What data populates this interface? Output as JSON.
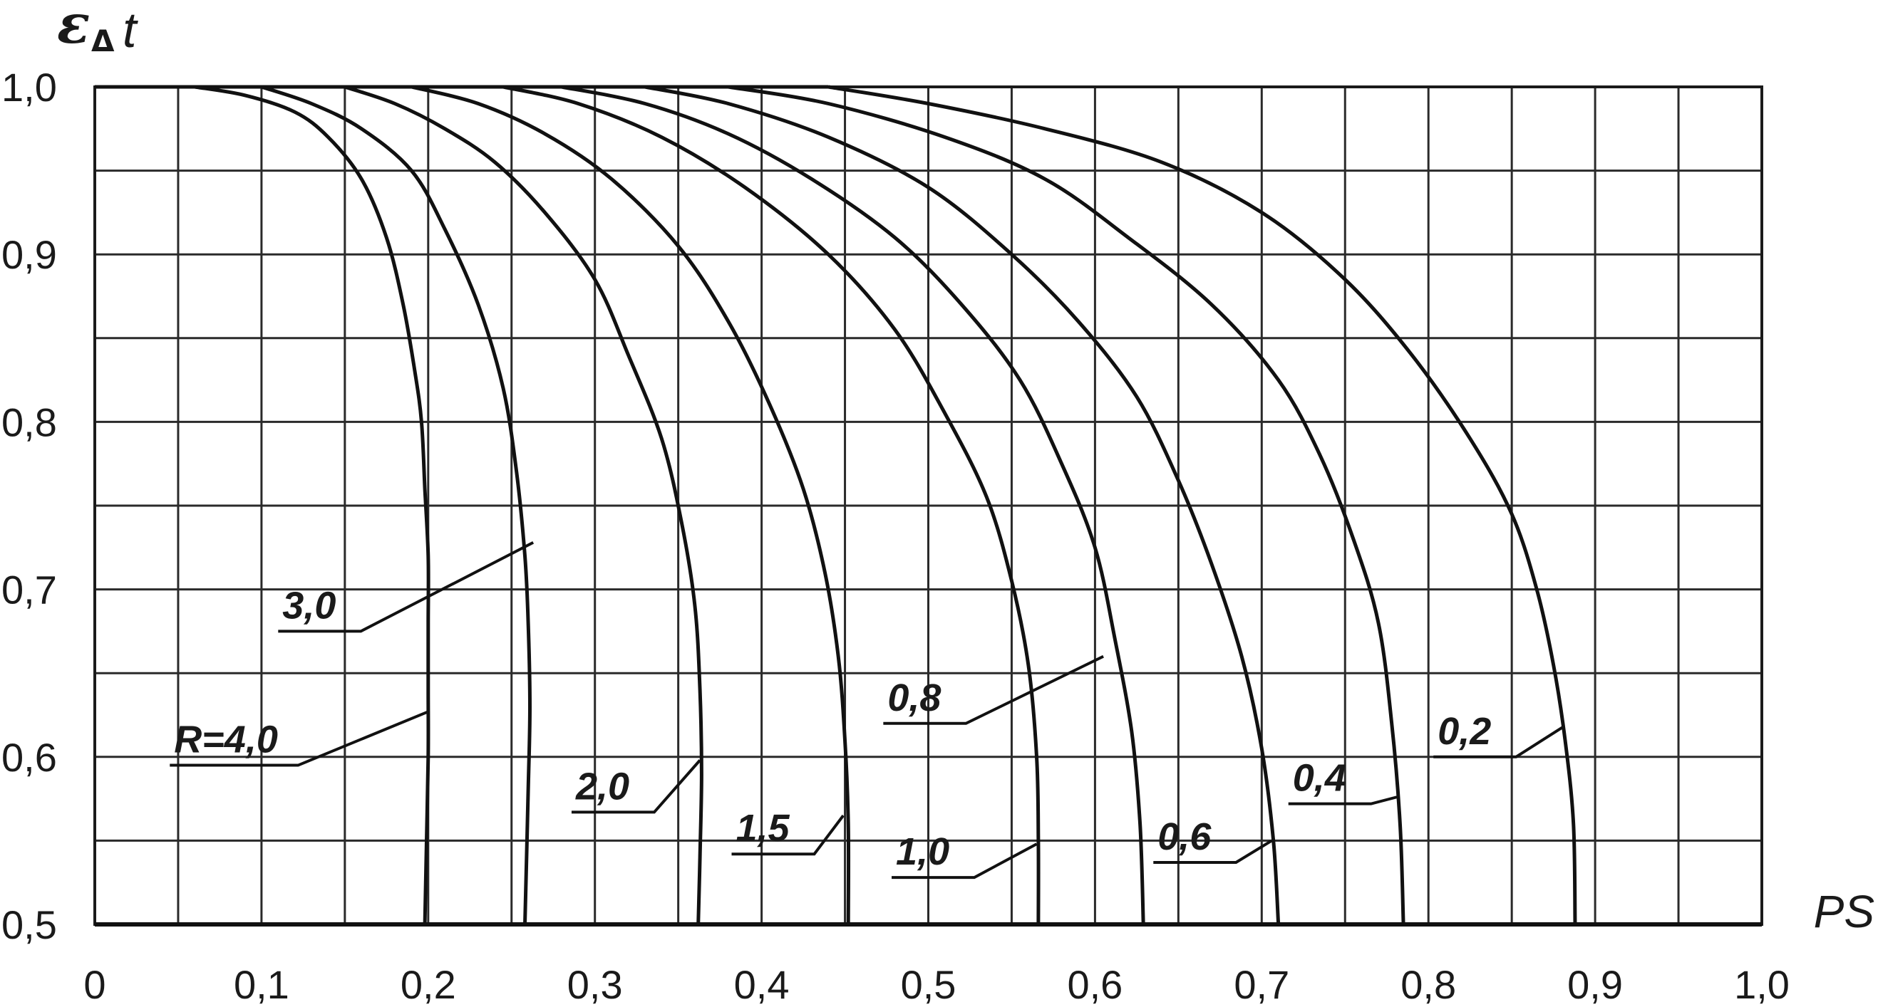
{
  "chart_data": {
    "type": "line",
    "ylabel": {
      "main": "ε",
      "sub": "Δ",
      "suffix": "t"
    },
    "xlabel": "PS",
    "xlim": [
      0,
      1.0
    ],
    "ylim": [
      0.5,
      1.0
    ],
    "grid": true,
    "x_tick_labels": [
      "0",
      "0,1",
      "0,2",
      "0,3",
      "0,4",
      "0,5",
      "0,6",
      "0,7",
      "0,8",
      "0,9",
      "1,0"
    ],
    "y_tick_labels": [
      "0,5",
      "0,6",
      "0,7",
      "0,8",
      "0,9",
      "1,0"
    ],
    "series": [
      {
        "name": "R=4,0",
        "label_text": "R=4,0",
        "points": [
          [
            0.06,
            1.0
          ],
          [
            0.09,
            0.995
          ],
          [
            0.12,
            0.985
          ],
          [
            0.14,
            0.97
          ],
          [
            0.16,
            0.945
          ],
          [
            0.175,
            0.91
          ],
          [
            0.185,
            0.87
          ],
          [
            0.192,
            0.83
          ],
          [
            0.196,
            0.8
          ],
          [
            0.198,
            0.76
          ],
          [
            0.2,
            0.72
          ],
          [
            0.2,
            0.68
          ],
          [
            0.2,
            0.64
          ],
          [
            0.2,
            0.6
          ],
          [
            0.199,
            0.55
          ],
          [
            0.198,
            0.5
          ]
        ],
        "label_anchor": [
          0.045,
          0.595
        ],
        "leader_end": [
          0.2,
          0.627
        ]
      },
      {
        "name": "3,0",
        "label_text": "3,0",
        "points": [
          [
            0.1,
            1.0
          ],
          [
            0.13,
            0.99
          ],
          [
            0.16,
            0.975
          ],
          [
            0.19,
            0.95
          ],
          [
            0.21,
            0.915
          ],
          [
            0.23,
            0.87
          ],
          [
            0.245,
            0.82
          ],
          [
            0.253,
            0.77
          ],
          [
            0.258,
            0.72
          ],
          [
            0.26,
            0.68
          ],
          [
            0.261,
            0.63
          ],
          [
            0.26,
            0.58
          ],
          [
            0.258,
            0.5
          ]
        ],
        "label_anchor": [
          0.11,
          0.675
        ],
        "leader_end": [
          0.263,
          0.728
        ]
      },
      {
        "name": "2,0",
        "label_text": "2,0",
        "points": [
          [
            0.15,
            1.0
          ],
          [
            0.18,
            0.99
          ],
          [
            0.21,
            0.975
          ],
          [
            0.24,
            0.955
          ],
          [
            0.27,
            0.925
          ],
          [
            0.3,
            0.885
          ],
          [
            0.32,
            0.84
          ],
          [
            0.34,
            0.79
          ],
          [
            0.352,
            0.74
          ],
          [
            0.36,
            0.69
          ],
          [
            0.363,
            0.64
          ],
          [
            0.364,
            0.59
          ],
          [
            0.363,
            0.54
          ],
          [
            0.362,
            0.5
          ]
        ],
        "label_anchor": [
          0.286,
          0.567
        ],
        "leader_end": [
          0.363,
          0.598
        ]
      },
      {
        "name": "1,5",
        "label_text": "1,5",
        "points": [
          [
            0.19,
            1.0
          ],
          [
            0.23,
            0.99
          ],
          [
            0.27,
            0.972
          ],
          [
            0.31,
            0.945
          ],
          [
            0.35,
            0.905
          ],
          [
            0.38,
            0.86
          ],
          [
            0.405,
            0.81
          ],
          [
            0.425,
            0.76
          ],
          [
            0.438,
            0.71
          ],
          [
            0.446,
            0.66
          ],
          [
            0.45,
            0.61
          ],
          [
            0.452,
            0.56
          ],
          [
            0.452,
            0.5
          ]
        ],
        "label_anchor": [
          0.382,
          0.542
        ],
        "leader_end": [
          0.449,
          0.565
        ]
      },
      {
        "name": "1,0",
        "label_text": "1,0",
        "points": [
          [
            0.245,
            1.0
          ],
          [
            0.29,
            0.99
          ],
          [
            0.34,
            0.97
          ],
          [
            0.39,
            0.94
          ],
          [
            0.44,
            0.9
          ],
          [
            0.48,
            0.855
          ],
          [
            0.51,
            0.805
          ],
          [
            0.535,
            0.755
          ],
          [
            0.55,
            0.705
          ],
          [
            0.56,
            0.655
          ],
          [
            0.565,
            0.6
          ],
          [
            0.566,
            0.55
          ],
          [
            0.566,
            0.5
          ]
        ],
        "label_anchor": [
          0.478,
          0.528
        ],
        "leader_end": [
          0.565,
          0.548
        ]
      },
      {
        "name": "0,8",
        "label_text": "0,8",
        "points": [
          [
            0.28,
            1.0
          ],
          [
            0.33,
            0.99
          ],
          [
            0.38,
            0.972
          ],
          [
            0.43,
            0.945
          ],
          [
            0.48,
            0.91
          ],
          [
            0.52,
            0.87
          ],
          [
            0.555,
            0.825
          ],
          [
            0.58,
            0.775
          ],
          [
            0.6,
            0.725
          ],
          [
            0.612,
            0.67
          ],
          [
            0.622,
            0.615
          ],
          [
            0.627,
            0.56
          ],
          [
            0.629,
            0.5
          ]
        ],
        "label_anchor": [
          0.473,
          0.62
        ],
        "leader_end": [
          0.605,
          0.66
        ]
      },
      {
        "name": "0,6",
        "label_text": "0,6",
        "points": [
          [
            0.33,
            1.0
          ],
          [
            0.38,
            0.99
          ],
          [
            0.44,
            0.97
          ],
          [
            0.5,
            0.94
          ],
          [
            0.55,
            0.9
          ],
          [
            0.59,
            0.86
          ],
          [
            0.625,
            0.815
          ],
          [
            0.65,
            0.765
          ],
          [
            0.67,
            0.715
          ],
          [
            0.688,
            0.66
          ],
          [
            0.7,
            0.605
          ],
          [
            0.707,
            0.55
          ],
          [
            0.71,
            0.5
          ]
        ],
        "label_anchor": [
          0.635,
          0.537
        ],
        "leader_end": [
          0.706,
          0.55
        ]
      },
      {
        "name": "0,4",
        "label_text": "0,4",
        "points": [
          [
            0.38,
            1.0
          ],
          [
            0.44,
            0.99
          ],
          [
            0.51,
            0.97
          ],
          [
            0.57,
            0.945
          ],
          [
            0.62,
            0.91
          ],
          [
            0.67,
            0.87
          ],
          [
            0.71,
            0.825
          ],
          [
            0.735,
            0.78
          ],
          [
            0.755,
            0.73
          ],
          [
            0.77,
            0.68
          ],
          [
            0.778,
            0.62
          ],
          [
            0.783,
            0.56
          ],
          [
            0.785,
            0.5
          ]
        ],
        "label_anchor": [
          0.716,
          0.572
        ],
        "leader_end": [
          0.781,
          0.576
        ]
      },
      {
        "name": "0,2",
        "label_text": "0,2",
        "points": [
          [
            0.44,
            1.0
          ],
          [
            0.5,
            0.99
          ],
          [
            0.57,
            0.975
          ],
          [
            0.64,
            0.955
          ],
          [
            0.7,
            0.925
          ],
          [
            0.75,
            0.885
          ],
          [
            0.79,
            0.84
          ],
          [
            0.825,
            0.79
          ],
          [
            0.85,
            0.745
          ],
          [
            0.865,
            0.7
          ],
          [
            0.875,
            0.655
          ],
          [
            0.882,
            0.61
          ],
          [
            0.887,
            0.56
          ],
          [
            0.888,
            0.5
          ]
        ],
        "label_anchor": [
          0.803,
          0.6
        ],
        "leader_end": [
          0.881,
          0.618
        ]
      }
    ]
  }
}
